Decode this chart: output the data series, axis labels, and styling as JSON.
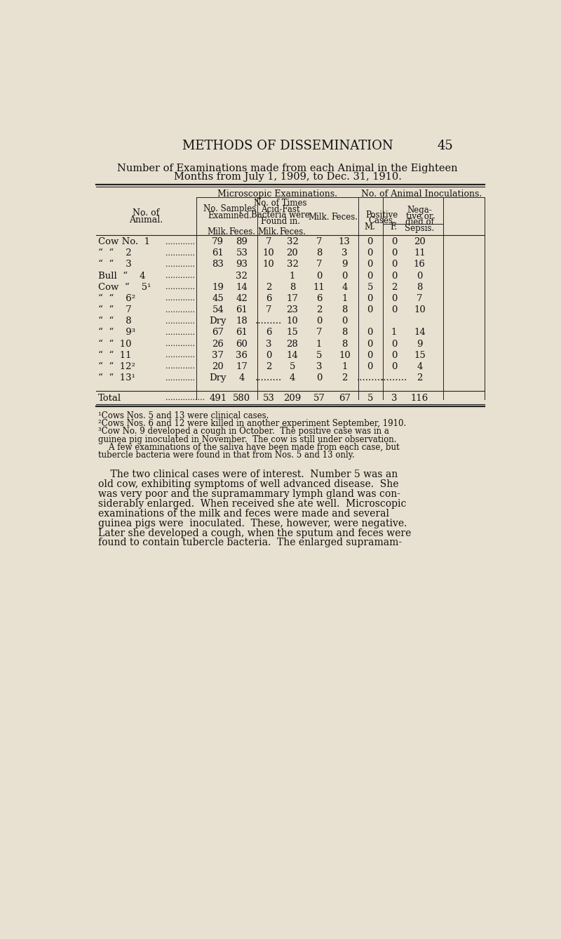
{
  "bg_color": "#e8e0d0",
  "page_number": "45",
  "chapter_title": "METHODS OF DISSEMINATION",
  "table_title_line1": "Number of Examinations made from each Animal in the Eighteen",
  "table_title_line2": "Months from July 1, 1909, to Dec. 31, 1910.",
  "rows": [
    {
      "label": "Cow No.  1",
      "milk_s": "79",
      "feces_s": "89",
      "milk_f": "7",
      "feces_f": "32",
      "milk_i": "7",
      "feces_i": "13",
      "M": "0",
      "F": "0",
      "neg": "20"
    },
    {
      "label": "“  “    2",
      "milk_s": "61",
      "feces_s": "53",
      "milk_f": "10",
      "feces_f": "20",
      "milk_i": "8",
      "feces_i": "3",
      "M": "0",
      "F": "0",
      "neg": "11"
    },
    {
      "label": "“  “    3",
      "milk_s": "83",
      "feces_s": "93",
      "milk_f": "10",
      "feces_f": "32",
      "milk_i": "7",
      "feces_i": "9",
      "M": "0",
      "F": "0",
      "neg": "16"
    },
    {
      "label": "Bull  “    4",
      "milk_s": "",
      "feces_s": "32",
      "milk_f": "",
      "feces_f": "1",
      "milk_i": "0",
      "feces_i": "0",
      "M": "0",
      "F": "0",
      "neg": "0"
    },
    {
      "label": "Cow  “    5¹",
      "milk_s": "19",
      "feces_s": "14",
      "milk_f": "2",
      "feces_f": "8",
      "milk_i": "11",
      "feces_i": "4",
      "M": "5",
      "F": "2",
      "neg": "8"
    },
    {
      "label": "“  “    6²",
      "milk_s": "45",
      "feces_s": "42",
      "milk_f": "6",
      "feces_f": "17",
      "milk_i": "6",
      "feces_i": "1",
      "M": "0",
      "F": "0",
      "neg": "7"
    },
    {
      "label": "“  “    7",
      "milk_s": "54",
      "feces_s": "61",
      "milk_f": "7",
      "feces_f": "23",
      "milk_i": "2",
      "feces_i": "8",
      "M": "0",
      "F": "0",
      "neg": "10"
    },
    {
      "label": "“  “    8",
      "milk_s": "Dry",
      "feces_s": "18",
      "milk_f": ".........",
      "feces_f": "10",
      "milk_i": "0",
      "feces_i": "0",
      "M": "",
      "F": "",
      "neg": ""
    },
    {
      "label": "“  “    9³",
      "milk_s": "67",
      "feces_s": "61",
      "milk_f": "6",
      "feces_f": "15",
      "milk_i": "7",
      "feces_i": "8",
      "M": "0",
      "F": "1",
      "neg": "14"
    },
    {
      "label": "“  “  10",
      "milk_s": "26",
      "feces_s": "60",
      "milk_f": "3",
      "feces_f": "28",
      "milk_i": "1",
      "feces_i": "8",
      "M": "0",
      "F": "0",
      "neg": "9"
    },
    {
      "label": "“  “  11",
      "milk_s": "37",
      "feces_s": "36",
      "milk_f": "0",
      "feces_f": "14",
      "milk_i": "5",
      "feces_i": "10",
      "M": "0",
      "F": "0",
      "neg": "15"
    },
    {
      "label": "“  “  12²",
      "milk_s": "20",
      "feces_s": "17",
      "milk_f": "2",
      "feces_f": "5",
      "milk_i": "3",
      "feces_i": "1",
      "M": "0",
      "F": "0",
      "neg": "4"
    },
    {
      "label": "“  “  13¹",
      "milk_s": "Dry",
      "feces_s": "4",
      "milk_f": ".........",
      "feces_f": "4",
      "milk_i": "0",
      "feces_i": "2",
      "M": ".........",
      "F": ".........",
      "neg": "2"
    }
  ],
  "total_row": {
    "label": "Total",
    "milk_s": "491",
    "feces_s": "580",
    "milk_f": "53",
    "feces_f": "209",
    "milk_i": "57",
    "feces_i": "67",
    "M": "5",
    "F": "3",
    "neg": "116"
  },
  "footnote_lines": [
    "¹Cows Nos. 5 and 13 were clinical cases.",
    "²Cows Nos. 6 and 12 were killed in another experiment September, 1910.",
    "³Cow No. 9 developed a cough in October.  The positive case was in a",
    "guinea pig inoculated in November.  The cow is still under observation.",
    "    A few examinations of the saliva have been made from each case, but",
    "tubercle bacteria were found in that from Nos. 5 and 13 only."
  ],
  "para_lines": [
    "    The two clinical cases were of interest.  Number 5 was an",
    "old cow, exhibiting symptoms of well advanced disease.  She",
    "was very poor and the supramammary lymph gland was con-",
    "siderably enlarged.  When received she ate well.  Microscopic",
    "examinations of the milk and feces were made and several",
    "guinea pigs were  inoculated.  These, however, were negative.",
    "Later she developed a cough, when the sputum and feces were",
    "found to contain tubercle bacteria.  The enlarged supramam-"
  ]
}
